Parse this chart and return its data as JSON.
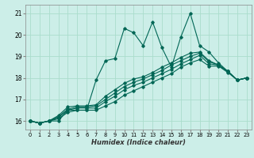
{
  "title": "",
  "xlabel": "Humidex (Indice chaleur)",
  "bg_color": "#cceee8",
  "grid_color": "#aaddcc",
  "line_color": "#006655",
  "xlim": [
    -0.5,
    23.5
  ],
  "ylim": [
    15.6,
    21.4
  ],
  "xticks": [
    0,
    1,
    2,
    3,
    4,
    5,
    6,
    7,
    8,
    9,
    10,
    11,
    12,
    13,
    14,
    15,
    16,
    17,
    18,
    19,
    20,
    21,
    22,
    23
  ],
  "yticks": [
    16,
    17,
    18,
    19,
    20,
    21
  ],
  "lines": [
    [
      16.0,
      15.9,
      16.0,
      16.0,
      16.5,
      16.5,
      16.5,
      17.9,
      18.8,
      18.9,
      20.3,
      20.1,
      19.5,
      20.6,
      19.4,
      18.5,
      19.9,
      21.0,
      19.5,
      19.2,
      18.7,
      18.3,
      17.9,
      18.0
    ],
    [
      16.0,
      15.9,
      16.0,
      16.1,
      16.4,
      16.5,
      16.5,
      16.5,
      16.7,
      16.9,
      17.2,
      17.4,
      17.6,
      17.8,
      18.0,
      18.2,
      18.5,
      18.7,
      18.85,
      18.55,
      18.55,
      18.25,
      17.9,
      18.0
    ],
    [
      16.0,
      15.9,
      16.0,
      16.15,
      16.5,
      16.6,
      16.6,
      16.6,
      16.9,
      17.15,
      17.45,
      17.65,
      17.8,
      18.0,
      18.2,
      18.4,
      18.65,
      18.85,
      19.05,
      18.65,
      18.6,
      18.3,
      17.9,
      18.0
    ],
    [
      16.0,
      15.9,
      16.0,
      16.2,
      16.55,
      16.65,
      16.65,
      16.7,
      17.0,
      17.3,
      17.6,
      17.8,
      17.95,
      18.15,
      18.35,
      18.6,
      18.8,
      19.0,
      19.15,
      18.75,
      18.6,
      18.3,
      17.9,
      18.0
    ],
    [
      16.0,
      15.9,
      16.0,
      16.25,
      16.65,
      16.7,
      16.7,
      16.75,
      17.15,
      17.45,
      17.75,
      17.95,
      18.05,
      18.25,
      18.5,
      18.7,
      18.95,
      19.15,
      19.2,
      18.8,
      18.6,
      18.3,
      17.9,
      18.0
    ]
  ]
}
